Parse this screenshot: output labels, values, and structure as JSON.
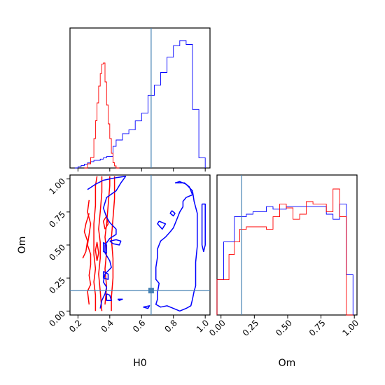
{
  "chart_data": {
    "type": "corner",
    "colors": {
      "posterior_a": "#0000ff",
      "posterior_b": "#ff0000",
      "truth": "#4682b4"
    },
    "params": [
      "H0",
      "Om"
    ],
    "truth": {
      "H0": 0.66,
      "Om": 0.155
    },
    "axes": {
      "H0": {
        "xlim": [
          0.15,
          1.03
        ],
        "ticks": [
          0.2,
          0.4,
          0.6,
          0.8,
          1.0
        ],
        "tick_labels": [
          "0.2",
          "0.4",
          "0.6",
          "0.8",
          "1.0"
        ],
        "xlabel": "H0"
      },
      "Om": {
        "xlim": [
          -0.03,
          1.02
        ],
        "ylim": [
          -0.03,
          1.03
        ],
        "ticks": [
          0.0,
          0.25,
          0.5,
          0.75,
          1.0
        ],
        "tick_labels": [
          "0.00",
          "0.25",
          "0.50",
          "0.75",
          "1.00"
        ],
        "label": "Om"
      }
    },
    "hist_H0": {
      "blue": {
        "edges": [
          0.18,
          0.2,
          0.22,
          0.24,
          0.26,
          0.28,
          0.3,
          0.32,
          0.34,
          0.36,
          0.38,
          0.4,
          0.42,
          0.44,
          0.46,
          0.48,
          0.5,
          0.52,
          0.54,
          0.56,
          0.58,
          0.6,
          0.62,
          0.64,
          0.66,
          0.68,
          0.7,
          0.72,
          0.74,
          0.76,
          0.78,
          0.8,
          0.82,
          0.84,
          0.86,
          0.88,
          0.9,
          0.92,
          0.94,
          0.96,
          0.98,
          1.0
        ],
        "counts": [
          0.0,
          0.01,
          0.02,
          0.03,
          0.04,
          0.05,
          0.06,
          0.06,
          0.07,
          0.08,
          0.09,
          0.09,
          0.17,
          0.22,
          0.22,
          0.27,
          0.27,
          0.3,
          0.3,
          0.37,
          0.37,
          0.43,
          0.43,
          0.57,
          0.57,
          0.65,
          0.65,
          0.75,
          0.75,
          0.87,
          0.87,
          0.96,
          0.96,
          1.0,
          1.0,
          0.97,
          0.97,
          0.46,
          0.46,
          0.08,
          0.08
        ]
      },
      "red": {
        "edges": [
          0.24,
          0.26,
          0.28,
          0.3,
          0.31,
          0.32,
          0.33,
          0.34,
          0.35,
          0.36,
          0.37,
          0.38,
          0.39,
          0.4,
          0.41,
          0.42,
          0.43,
          0.44,
          0.46
        ],
        "counts": [
          0.0,
          0.04,
          0.1,
          0.28,
          0.45,
          0.62,
          0.78,
          0.9,
          0.99,
          1.0,
          0.82,
          0.6,
          0.42,
          0.28,
          0.14,
          0.05,
          0.02,
          0.0
        ]
      }
    },
    "hist_Om": {
      "edges": [
        -0.03,
        0.02,
        0.06,
        0.1,
        0.14,
        0.19,
        0.24,
        0.29,
        0.34,
        0.39,
        0.44,
        0.49,
        0.54,
        0.59,
        0.64,
        0.69,
        0.74,
        0.79,
        0.84,
        0.89,
        0.94,
        0.99
      ],
      "blue": [
        0.28,
        0.58,
        0.58,
        0.78,
        0.78,
        0.8,
        0.82,
        0.82,
        0.86,
        0.84,
        0.84,
        0.86,
        0.86,
        0.86,
        0.86,
        0.86,
        0.86,
        0.8,
        0.76,
        0.88,
        0.32
      ],
      "red": [
        0.28,
        0.28,
        0.48,
        0.58,
        0.68,
        0.7,
        0.7,
        0.7,
        0.68,
        0.78,
        0.88,
        0.85,
        0.76,
        0.8,
        0.9,
        0.88,
        0.88,
        0.82,
        1.0,
        0.78,
        0.0
      ]
    },
    "contour_blue": [
      [
        [
          0.26,
          0.92
        ],
        [
          0.31,
          0.96
        ],
        [
          0.36,
          0.99
        ],
        [
          0.44,
          1.01
        ],
        [
          0.5,
          1.02
        ],
        [
          0.47,
          0.97
        ],
        [
          0.44,
          0.91
        ],
        [
          0.38,
          0.86
        ],
        [
          0.36,
          0.78
        ],
        [
          0.38,
          0.71
        ],
        [
          0.4,
          0.67
        ],
        [
          0.44,
          0.62
        ],
        [
          0.44,
          0.58
        ],
        [
          0.4,
          0.55
        ],
        [
          0.37,
          0.5
        ],
        [
          0.37,
          0.44
        ],
        [
          0.4,
          0.38
        ],
        [
          0.41,
          0.33
        ],
        [
          0.37,
          0.28
        ],
        [
          0.36,
          0.22
        ],
        [
          0.38,
          0.18
        ],
        [
          0.37,
          0.13
        ],
        [
          0.35,
          0.08
        ],
        [
          0.34,
          0.02
        ]
      ],
      [
        [
          0.4,
          0.53
        ],
        [
          0.44,
          0.54
        ],
        [
          0.47,
          0.53
        ],
        [
          0.46,
          0.5
        ],
        [
          0.42,
          0.51
        ],
        [
          0.4,
          0.53
        ]
      ],
      [
        [
          0.36,
          0.52
        ],
        [
          0.38,
          0.5
        ],
        [
          0.38,
          0.44
        ],
        [
          0.36,
          0.45
        ],
        [
          0.36,
          0.52
        ]
      ],
      [
        [
          0.36,
          0.3
        ],
        [
          0.39,
          0.28
        ],
        [
          0.39,
          0.24
        ],
        [
          0.36,
          0.25
        ],
        [
          0.36,
          0.3
        ]
      ],
      [
        [
          0.38,
          0.13
        ],
        [
          0.4,
          0.12
        ],
        [
          0.41,
          0.08
        ],
        [
          0.38,
          0.08
        ],
        [
          0.38,
          0.13
        ]
      ],
      [
        [
          0.45,
          0.09
        ],
        [
          0.48,
          0.09
        ],
        [
          0.46,
          0.08
        ],
        [
          0.45,
          0.09
        ]
      ],
      [
        [
          0.81,
          0.97
        ],
        [
          0.87,
          0.97
        ],
        [
          0.9,
          0.94
        ],
        [
          0.92,
          0.88
        ],
        [
          0.88,
          0.86
        ],
        [
          0.86,
          0.83
        ],
        [
          0.86,
          0.79
        ],
        [
          0.84,
          0.75
        ],
        [
          0.82,
          0.69
        ],
        [
          0.8,
          0.63
        ],
        [
          0.78,
          0.6
        ],
        [
          0.75,
          0.56
        ],
        [
          0.72,
          0.53
        ],
        [
          0.7,
          0.47
        ],
        [
          0.7,
          0.41
        ],
        [
          0.69,
          0.33
        ],
        [
          0.69,
          0.29
        ],
        [
          0.69,
          0.24
        ],
        [
          0.71,
          0.21
        ],
        [
          0.7,
          0.14
        ],
        [
          0.7,
          0.09
        ],
        [
          0.69,
          0.05
        ],
        [
          0.72,
          0.03
        ],
        [
          0.76,
          0.04
        ],
        [
          0.8,
          0.02
        ],
        [
          0.84,
          0.0
        ],
        [
          0.88,
          0.02
        ],
        [
          0.91,
          0.04
        ],
        [
          0.92,
          0.09
        ],
        [
          0.93,
          0.15
        ],
        [
          0.94,
          0.19
        ],
        [
          0.94,
          0.28
        ],
        [
          0.94,
          0.37
        ],
        [
          0.95,
          0.49
        ],
        [
          0.95,
          0.59
        ],
        [
          0.95,
          0.66
        ],
        [
          0.95,
          0.74
        ],
        [
          0.93,
          0.83
        ],
        [
          0.92,
          0.91
        ],
        [
          0.88,
          0.96
        ],
        [
          0.84,
          0.98
        ],
        [
          0.81,
          0.97
        ]
      ],
      [
        [
          0.79,
          0.76
        ],
        [
          0.81,
          0.74
        ],
        [
          0.8,
          0.72
        ],
        [
          0.78,
          0.74
        ],
        [
          0.79,
          0.76
        ]
      ],
      [
        [
          0.71,
          0.68
        ],
        [
          0.75,
          0.66
        ],
        [
          0.73,
          0.62
        ],
        [
          0.7,
          0.66
        ],
        [
          0.71,
          0.68
        ]
      ],
      [
        [
          0.98,
          0.81
        ],
        [
          1.0,
          0.81
        ],
        [
          1.0,
          0.5
        ],
        [
          0.99,
          0.45
        ],
        [
          0.98,
          0.5
        ],
        [
          0.98,
          0.81
        ]
      ],
      [
        [
          0.61,
          0.03
        ],
        [
          0.65,
          0.04
        ],
        [
          0.64,
          0.02
        ],
        [
          0.61,
          0.03
        ]
      ]
    ],
    "contour_red": [
      [
        [
          0.27,
          0.05
        ],
        [
          0.26,
          0.15
        ],
        [
          0.28,
          0.2
        ],
        [
          0.27,
          0.27
        ],
        [
          0.28,
          0.35
        ],
        [
          0.28,
          0.43
        ],
        [
          0.26,
          0.5
        ],
        [
          0.27,
          0.58
        ],
        [
          0.28,
          0.66
        ],
        [
          0.26,
          0.75
        ],
        [
          0.27,
          0.84
        ]
      ],
      [
        [
          0.23,
          0.4
        ],
        [
          0.25,
          0.45
        ],
        [
          0.26,
          0.53
        ],
        [
          0.24,
          0.6
        ],
        [
          0.25,
          0.66
        ],
        [
          0.27,
          0.74
        ]
      ],
      [
        [
          0.31,
          0.0
        ],
        [
          0.31,
          0.12
        ],
        [
          0.3,
          0.22
        ],
        [
          0.31,
          0.32
        ],
        [
          0.3,
          0.43
        ],
        [
          0.3,
          0.55
        ],
        [
          0.3,
          0.66
        ],
        [
          0.31,
          0.8
        ],
        [
          0.31,
          0.95
        ],
        [
          0.32,
          1.02
        ]
      ],
      [
        [
          0.35,
          0.0
        ],
        [
          0.34,
          0.15
        ],
        [
          0.33,
          0.28
        ],
        [
          0.34,
          0.4
        ],
        [
          0.34,
          0.52
        ],
        [
          0.33,
          0.62
        ],
        [
          0.34,
          0.75
        ],
        [
          0.35,
          0.9
        ],
        [
          0.35,
          1.02
        ]
      ],
      [
        [
          0.37,
          0.05
        ],
        [
          0.38,
          0.18
        ],
        [
          0.37,
          0.32
        ],
        [
          0.38,
          0.45
        ],
        [
          0.37,
          0.56
        ],
        [
          0.38,
          0.66
        ],
        [
          0.39,
          0.8
        ],
        [
          0.4,
          0.95
        ],
        [
          0.4,
          1.02
        ]
      ],
      [
        [
          0.41,
          0.0
        ],
        [
          0.41,
          0.1
        ],
        [
          0.42,
          0.25
        ],
        [
          0.42,
          0.4
        ],
        [
          0.41,
          0.55
        ],
        [
          0.42,
          0.7
        ],
        [
          0.43,
          0.85
        ],
        [
          0.43,
          1.02
        ]
      ],
      [
        [
          0.32,
          0.38
        ],
        [
          0.33,
          0.44
        ],
        [
          0.32,
          0.52
        ],
        [
          0.31,
          0.46
        ],
        [
          0.32,
          0.38
        ]
      ],
      [
        [
          0.37,
          0.62
        ],
        [
          0.39,
          0.66
        ],
        [
          0.38,
          0.72
        ],
        [
          0.36,
          0.68
        ],
        [
          0.37,
          0.62
        ]
      ]
    ]
  }
}
